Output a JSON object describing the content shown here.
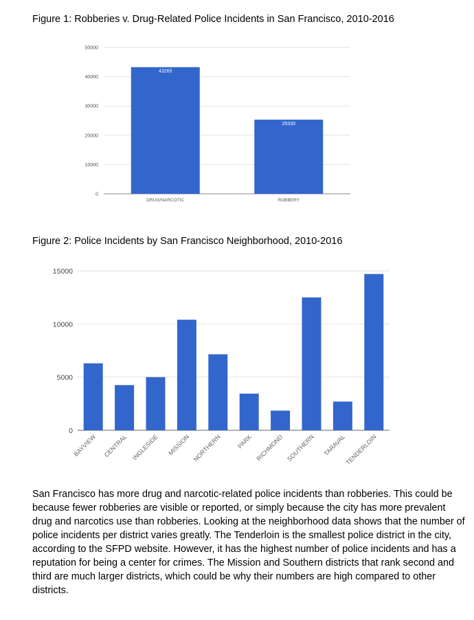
{
  "figure1": {
    "title": "Figure 1: Robberies v. Drug-Related Police Incidents in San Francisco, 2010-2016"
  },
  "figure2": {
    "title": "Figure 2: Police Incidents by San Francisco Neighborhood, 2010-2016"
  },
  "paragraph": "San Francisco has more drug and narcotic-related police incidents than robberies. This could be because fewer robberies are visible or reported, or simply because the city has more prevalent drug and narcotics use than robberies. Looking at the neighborhood data shows that the number of police incidents per district varies greatly. The Tenderloin is the smallest police district in the city, according to the SFPD website. However, it has the highest number of police incidents and has a reputation for being a center for crimes. The Mission and Southern districts that rank second and third are much larger districts, which could be why their numbers are high compared to other districts.",
  "chart_data": [
    {
      "type": "bar",
      "title": "",
      "categories": [
        "DRUG/NARCOTIC",
        "ROBBERY"
      ],
      "values": [
        43265,
        25330
      ],
      "data_labels": [
        "43265",
        "25330"
      ],
      "yticks": [
        0,
        10000,
        20000,
        30000,
        40000,
        50000
      ],
      "ylim": [
        0,
        50000
      ],
      "grid": true,
      "legend": "none",
      "bar_color": "#3366cc"
    },
    {
      "type": "bar",
      "title": "",
      "categories": [
        "BAYVIEW",
        "CENTRAL",
        "INGLESIDE",
        "MISSION",
        "NORTHERN",
        "PARK",
        "RICHMOND",
        "SOUTHERN",
        "TARAVAL",
        "TENDERLOIN"
      ],
      "values": [
        6300,
        4250,
        5000,
        10400,
        7150,
        3450,
        1850,
        12500,
        2700,
        14700
      ],
      "yticks": [
        0,
        5000,
        10000,
        15000
      ],
      "ylim": [
        0,
        15000
      ],
      "grid": true,
      "legend": "none",
      "bar_color": "#3366cc"
    }
  ]
}
